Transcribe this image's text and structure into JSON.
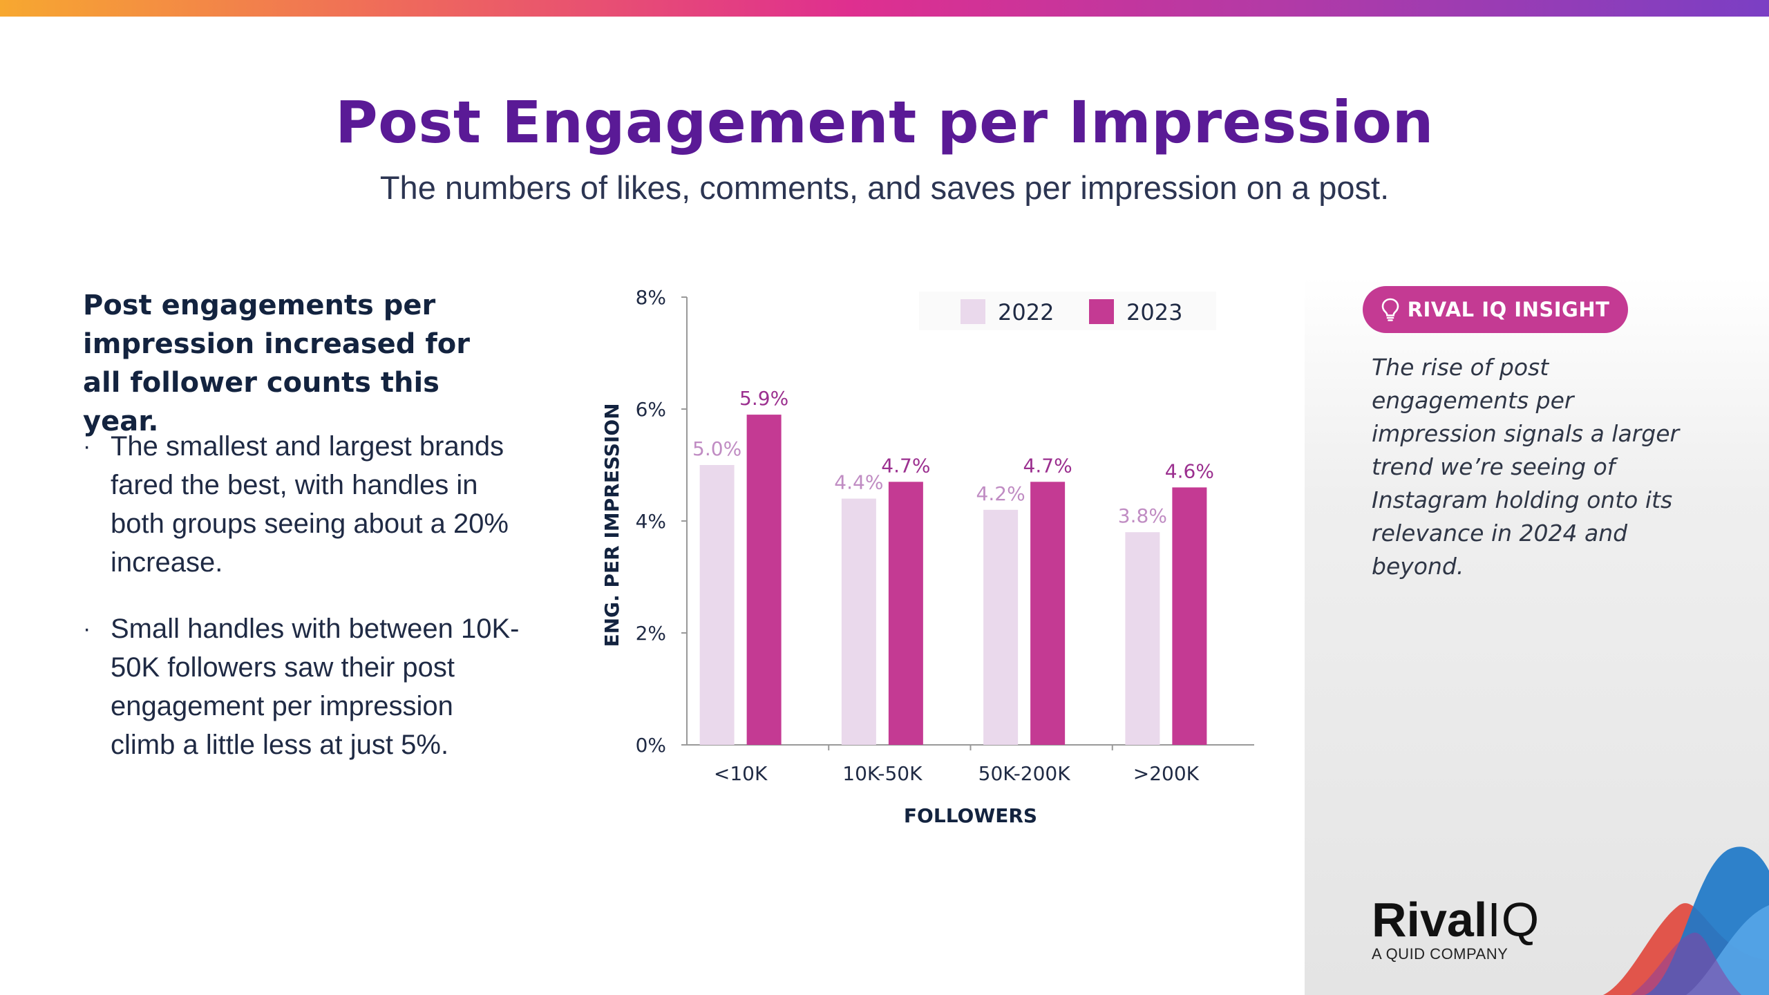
{
  "header": {
    "title": "Post Engagement per Impression",
    "subtitle": "The numbers of likes, comments, and saves per impression on a post."
  },
  "left": {
    "heading": "Post engagements per impression increased for all follower counts this year.",
    "bullets": [
      "The smallest and largest brands fared the best, with handles in both groups seeing about a 20% increase.",
      "Small handles with between 10K-50K followers saw their post engagement per impression climb a little less at just 5%."
    ]
  },
  "chart_data": {
    "type": "bar",
    "title": "",
    "xlabel": "FOLLOWERS",
    "ylabel": "ENG. PER IMPRESSION",
    "categories": [
      "<10K",
      "10K-50K",
      "50K-200K",
      ">200K"
    ],
    "series": [
      {
        "name": "2022",
        "values": [
          5.0,
          4.4,
          4.2,
          3.8
        ],
        "labels": [
          "5.0%",
          "4.4%",
          "4.2%",
          "3.8%"
        ],
        "color": "#ead9ec",
        "label_color": "#c08cc3"
      },
      {
        "name": "2023",
        "values": [
          5.9,
          4.7,
          4.7,
          4.6
        ],
        "labels": [
          "5.9%",
          "4.7%",
          "4.7%",
          "4.6%"
        ],
        "color": "#c43a93",
        "label_color": "#9b2f8f"
      }
    ],
    "ylim": [
      0,
      8
    ],
    "yticks": [
      0,
      2,
      4,
      6,
      8
    ],
    "ytick_labels": [
      "0%",
      "2%",
      "4%",
      "6%",
      "8%"
    ],
    "grid": false,
    "legend": "top-center"
  },
  "insight": {
    "badge": "RIVAL IQ INSIGHT",
    "text": "The rise of post engagements per impression signals a larger trend we’re seeing of Instagram holding onto its relevance in 2024 and beyond."
  },
  "logo": {
    "word_rival": "Rival",
    "word_iq": "IQ",
    "tagline": "A QUID COMPANY"
  },
  "colors": {
    "title": "#5a1a96",
    "accent": "#c43a93",
    "light_bar": "#ead9ec"
  },
  "icons": {
    "insight_badge": "lightbulb-icon"
  }
}
